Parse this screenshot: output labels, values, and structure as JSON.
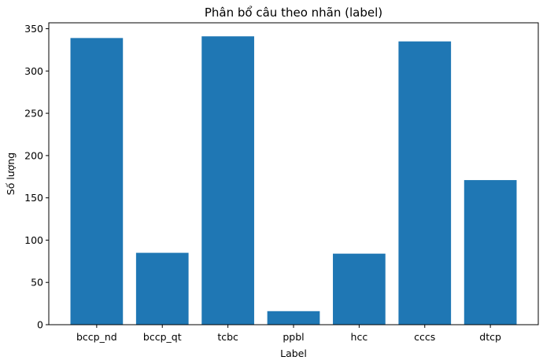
{
  "chart_data": {
    "type": "bar",
    "title": "Phân bổ câu theo nhãn (label)",
    "xlabel": "Label",
    "ylabel": "Số lượng",
    "categories": [
      "bccp_nd",
      "bccp_qt",
      "tcbc",
      "ppbl",
      "hcc",
      "cccs",
      "dtcp"
    ],
    "values": [
      339,
      85,
      341,
      16,
      84,
      335,
      171
    ],
    "ylim": [
      0,
      357
    ],
    "yticks": [
      0,
      50,
      100,
      150,
      200,
      250,
      300,
      350
    ],
    "ytick_labels": [
      "0",
      "50",
      "100",
      "150",
      "200",
      "250",
      "300",
      "350"
    ],
    "bar_color": "#1f77b4",
    "grid": false,
    "legend": "none"
  }
}
